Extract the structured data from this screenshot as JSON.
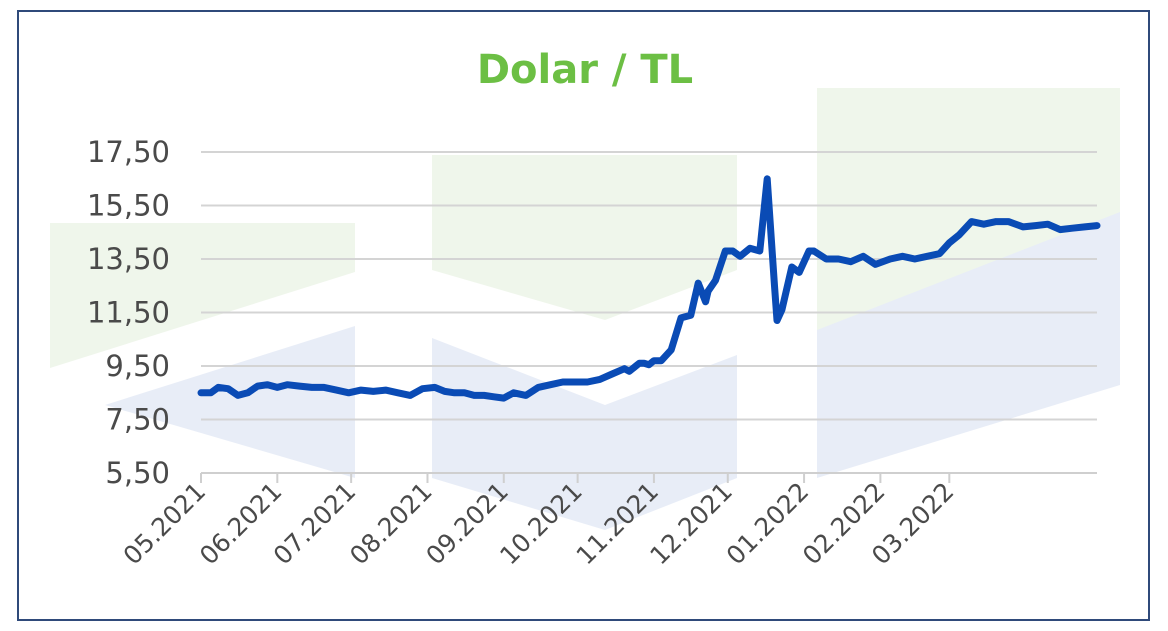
{
  "chart_data": {
    "type": "line",
    "title": "Dolar / TL",
    "xlabel": "",
    "ylabel": "",
    "ylim": [
      5.5,
      17.5
    ],
    "yticks": [
      "17,50",
      "15,50",
      "13,50",
      "11,50",
      "9,50",
      "7,50",
      "5,50"
    ],
    "ytick_values": [
      17.5,
      15.5,
      13.5,
      11.5,
      9.5,
      7.5,
      5.5
    ],
    "xticks": [
      "05.2021",
      "06.2021",
      "07.2021",
      "08.2021",
      "09.2021",
      "10.2021",
      "11.2021",
      "12.2021",
      "01.2022",
      "02.2022",
      "03.2022"
    ],
    "grid": true,
    "legend": "none",
    "series": [
      {
        "color": "#0a4bb5",
        "x": [
          "2021-05-01",
          "2021-05-05",
          "2021-05-08",
          "2021-05-12",
          "2021-05-16",
          "2021-05-20",
          "2021-05-24",
          "2021-05-28",
          "2021-06-01",
          "2021-06-05",
          "2021-06-10",
          "2021-06-15",
          "2021-06-20",
          "2021-06-25",
          "2021-06-30",
          "2021-07-05",
          "2021-07-10",
          "2021-07-15",
          "2021-07-20",
          "2021-07-25",
          "2021-07-30",
          "2021-08-04",
          "2021-08-08",
          "2021-08-12",
          "2021-08-16",
          "2021-08-20",
          "2021-08-24",
          "2021-08-28",
          "2021-09-01",
          "2021-09-05",
          "2021-09-10",
          "2021-09-15",
          "2021-09-20",
          "2021-09-25",
          "2021-09-30",
          "2021-10-05",
          "2021-10-10",
          "2021-10-15",
          "2021-10-20",
          "2021-10-22",
          "2021-10-26",
          "2021-10-28",
          "2021-10-30",
          "2021-11-01",
          "2021-11-04",
          "2021-11-06",
          "2021-11-08",
          "2021-11-12",
          "2021-11-16",
          "2021-11-19",
          "2021-11-22",
          "2021-11-23",
          "2021-11-26",
          "2021-11-30",
          "2021-12-03",
          "2021-12-06",
          "2021-12-10",
          "2021-12-14",
          "2021-12-17",
          "2021-12-20",
          "2021-12-21",
          "2021-12-23",
          "2021-12-27",
          "2021-12-30",
          "2022-01-03",
          "2022-01-05",
          "2022-01-10",
          "2022-01-15",
          "2022-01-20",
          "2022-01-25",
          "2022-01-30",
          "2022-02-05",
          "2022-02-10",
          "2022-02-15",
          "2022-02-20",
          "2022-02-25",
          "2022-03-01",
          "2022-03-05",
          "2022-03-10",
          "2022-03-15",
          "2022-03-20",
          "2022-03-25",
          "2022-03-31",
          "2022-04-05",
          "2022-04-10",
          "2022-04-15",
          "2022-04-20",
          "2022-04-25",
          "2022-04-30"
        ],
        "y": [
          8.5,
          8.5,
          8.7,
          8.65,
          8.4,
          8.5,
          8.75,
          8.8,
          8.7,
          8.8,
          8.75,
          8.7,
          8.7,
          8.6,
          8.5,
          8.6,
          8.55,
          8.6,
          8.5,
          8.4,
          8.65,
          8.7,
          8.55,
          8.5,
          8.5,
          8.4,
          8.4,
          8.35,
          8.3,
          8.5,
          8.4,
          8.7,
          8.8,
          8.9,
          8.9,
          8.9,
          9.0,
          9.2,
          9.4,
          9.3,
          9.6,
          9.6,
          9.55,
          9.7,
          9.7,
          9.9,
          10.1,
          11.3,
          11.4,
          12.6,
          11.9,
          12.3,
          12.7,
          13.8,
          13.8,
          13.6,
          13.9,
          13.8,
          16.5,
          12.5,
          11.2,
          11.6,
          13.2,
          13.0,
          13.8,
          13.8,
          13.5,
          13.5,
          13.4,
          13.6,
          13.3,
          13.5,
          13.6,
          13.5,
          13.6,
          13.7,
          14.1,
          14.4,
          14.9,
          14.8,
          14.9,
          14.9,
          14.7,
          14.75,
          14.8,
          14.6,
          14.65,
          14.7,
          14.75
        ]
      }
    ]
  }
}
